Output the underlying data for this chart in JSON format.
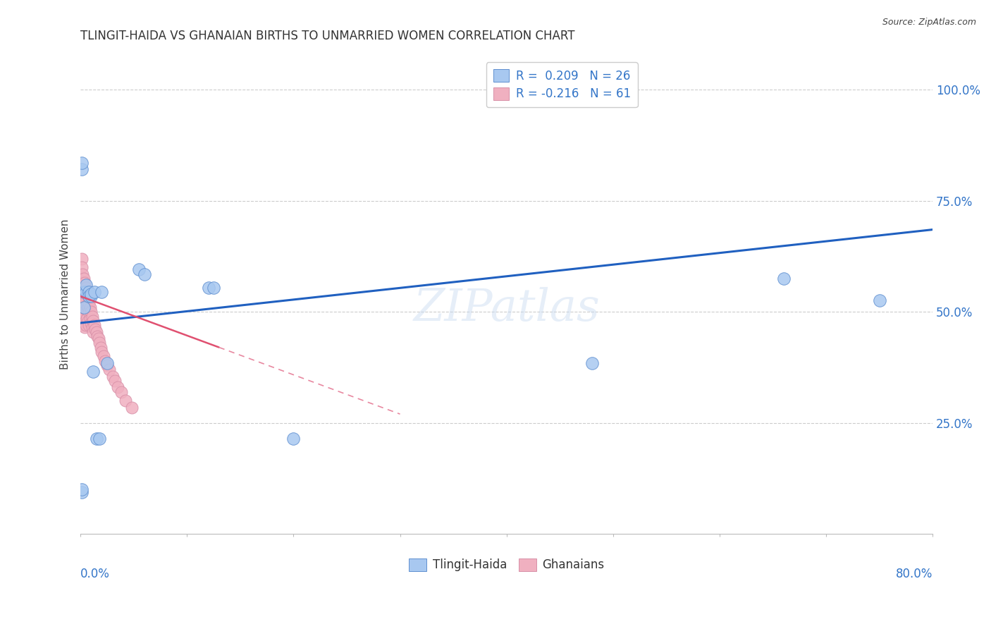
{
  "title": "TLINGIT-HAIDA VS GHANAIAN BIRTHS TO UNMARRIED WOMEN CORRELATION CHART",
  "source": "Source: ZipAtlas.com",
  "ylabel": "Births to Unmarried Women",
  "legend_entries": [
    {
      "label": "R =  0.209   N = 26",
      "color": "#a8c8f0"
    },
    {
      "label": "R = -0.216   N = 61",
      "color": "#f0b0c0"
    }
  ],
  "legend_bottom": [
    "Tlingit-Haida",
    "Ghanaians"
  ],
  "tlingit_color": "#a8c8f0",
  "ghanaian_color": "#f0b0c0",
  "trendline_tlingit_color": "#2060c0",
  "trendline_ghanaian_color": "#e05070",
  "background_color": "#ffffff",
  "tlingit_x": [
    0.001,
    0.001,
    0.001,
    0.001,
    0.003,
    0.003,
    0.005,
    0.005,
    0.008,
    0.008,
    0.01,
    0.01,
    0.012,
    0.013,
    0.015,
    0.018,
    0.02,
    0.025,
    0.055,
    0.06,
    0.12,
    0.125,
    0.2,
    0.48,
    0.66,
    0.75
  ],
  "tlingit_y": [
    0.095,
    0.1,
    0.82,
    0.835,
    0.545,
    0.51,
    0.545,
    0.56,
    0.545,
    0.535,
    0.535,
    0.54,
    0.365,
    0.545,
    0.215,
    0.215,
    0.545,
    0.385,
    0.595,
    0.585,
    0.555,
    0.555,
    0.215,
    0.385,
    0.575,
    0.525
  ],
  "ghanaian_x": [
    0.001,
    0.001,
    0.001,
    0.001,
    0.001,
    0.001,
    0.001,
    0.002,
    0.002,
    0.002,
    0.002,
    0.002,
    0.003,
    0.003,
    0.003,
    0.003,
    0.003,
    0.004,
    0.004,
    0.004,
    0.004,
    0.004,
    0.005,
    0.005,
    0.005,
    0.005,
    0.006,
    0.006,
    0.006,
    0.007,
    0.007,
    0.007,
    0.008,
    0.008,
    0.008,
    0.009,
    0.009,
    0.01,
    0.01,
    0.011,
    0.011,
    0.012,
    0.012,
    0.013,
    0.014,
    0.015,
    0.016,
    0.017,
    0.018,
    0.019,
    0.02,
    0.022,
    0.023,
    0.025,
    0.027,
    0.03,
    0.032,
    0.035,
    0.038,
    0.042,
    0.048
  ],
  "ghanaian_y": [
    0.62,
    0.6,
    0.56,
    0.545,
    0.525,
    0.505,
    0.48,
    0.585,
    0.565,
    0.525,
    0.505,
    0.47,
    0.575,
    0.555,
    0.52,
    0.5,
    0.48,
    0.565,
    0.545,
    0.51,
    0.495,
    0.465,
    0.555,
    0.525,
    0.505,
    0.47,
    0.545,
    0.515,
    0.485,
    0.535,
    0.51,
    0.48,
    0.52,
    0.5,
    0.47,
    0.51,
    0.485,
    0.5,
    0.475,
    0.49,
    0.465,
    0.48,
    0.455,
    0.47,
    0.46,
    0.455,
    0.445,
    0.44,
    0.43,
    0.42,
    0.41,
    0.4,
    0.39,
    0.38,
    0.37,
    0.355,
    0.345,
    0.33,
    0.32,
    0.3,
    0.285
  ],
  "xlim": [
    0.0,
    0.8
  ],
  "ylim": [
    0.0,
    1.08
  ],
  "ytick_vals": [
    0.25,
    0.5,
    0.75,
    1.0
  ],
  "ytick_labels": [
    "25.0%",
    "50.0%",
    "75.0%",
    "100.0%"
  ],
  "xtick_vals": [
    0.0,
    0.1,
    0.2,
    0.3,
    0.4,
    0.5,
    0.6,
    0.7,
    0.8
  ],
  "trendline_tlingit_x0": 0.0,
  "trendline_tlingit_y0": 0.475,
  "trendline_tlingit_x1": 0.8,
  "trendline_tlingit_y1": 0.685,
  "trendline_ghanaian_x0": 0.0,
  "trendline_ghanaian_y0": 0.535,
  "trendline_ghanaian_x1": 0.3,
  "trendline_ghanaian_y1": 0.27
}
